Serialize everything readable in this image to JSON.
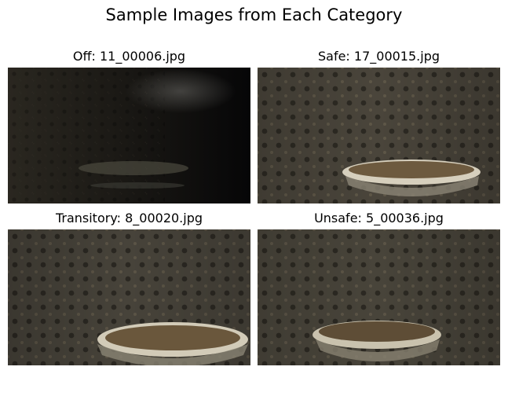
{
  "figure": {
    "title": "Sample Images from Each Category",
    "panels": [
      {
        "title": "Off: 11_00006.jpg",
        "scene": "dark"
      },
      {
        "title": "Safe: 17_00015.jpg",
        "scene": "lit"
      },
      {
        "title": "Transitory: 8_00020.jpg",
        "scene": "lit"
      },
      {
        "title": "Unsafe: 5_00036.jpg",
        "scene": "lit"
      }
    ]
  }
}
